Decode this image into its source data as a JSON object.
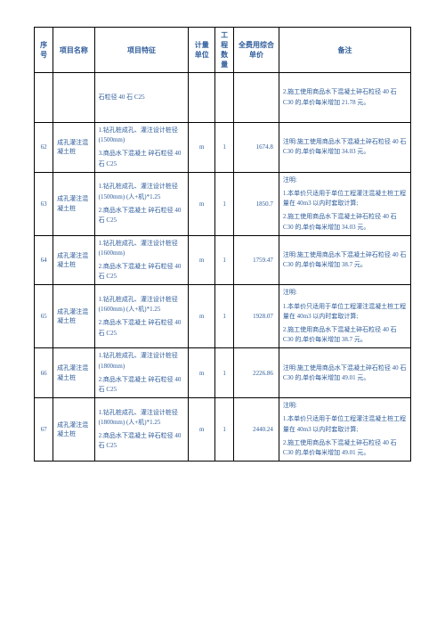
{
  "columns": [
    "序号",
    "项目名称",
    "项目特征",
    "计量单位",
    "工程数量",
    "全费用综合单价",
    "备注"
  ],
  "rows": [
    {
      "seq": "",
      "name": "",
      "features": [
        "石粒径 40 石 C25"
      ],
      "unit": "",
      "qty": "",
      "price": "",
      "remarks": [
        "2.施工使用商品水下混凝土碎石粒径 40 石 C30 的,单价每米增加 21.78 元。"
      ]
    },
    {
      "seq": "62",
      "name": "成孔灌注混凝土桩",
      "features": [
        "1.钻孔桩成孔、灌注设计桩径(1500mm)",
        "3.商品水下混凝土 碎石粒径 40 石 C25"
      ],
      "unit": "m",
      "qty": "1",
      "price": "1674.8",
      "remarks": [
        "注明:施工使用商品水下混凝土碎石粒径 40 石 C30 的,单价每米增加 34.03 元。"
      ]
    },
    {
      "seq": "63",
      "name": "成孔灌注混凝土桩",
      "features": [
        "1.钻孔桩成孔、灌注设计桩径(1500mm) (人+机)*1.25",
        "2.商品水下混凝土 碎石粒径 40 石 C25"
      ],
      "unit": "m",
      "qty": "1",
      "price": "1850.7",
      "remarks": [
        "注明:",
        "1.本单价只适用于单位工程灌注混凝土桩工程量在 40m3 以内时套取计算;",
        "2.施工使用商品水下混凝土碎石粒径 40 石 C30 的,单价每米增加 34.03 元。"
      ]
    },
    {
      "seq": "64",
      "name": "成孔灌注混凝土桩",
      "features": [
        "1.钻孔桩成孔、灌注设计桩径(1600mm)",
        "2.商品水下混凝土 碎石粒径 40 石 C25"
      ],
      "unit": "m",
      "qty": "1",
      "price": "1759.47",
      "remarks": [
        "注明:施工使用商品水下混凝土碎石粒径 40 石 C30 的,单价每米增加 38.7 元。"
      ]
    },
    {
      "seq": "65",
      "name": "成孔灌注混凝土桩",
      "features": [
        "1.钻孔桩成孔、灌注设计桩径(1600mm) (人+机)*1.25",
        "2.商品水下混凝土 碎石粒径 40 石 C25"
      ],
      "unit": "m",
      "qty": "1",
      "price": "1928.07",
      "remarks": [
        "注明:",
        "1.本单价只适用于单位工程灌注混凝土桩工程量在 40m3 以内时套取计算;",
        "2.施工使用商品水下混凝土碎石粒径 40 石 C30 的,单价每米增加 38.7 元。"
      ]
    },
    {
      "seq": "66",
      "name": "成孔灌注混凝土桩",
      "features": [
        "1.钻孔桩成孔、灌注设计桩径(1800mm)",
        "2.商品水下混凝土 碎石粒径 40 石 C25"
      ],
      "unit": "m",
      "qty": "1",
      "price": "2226.86",
      "remarks": [
        "注明:施工使用商品水下混凝土碎石粒径 40 石 C30 的,单价每米增加 49.01 元。"
      ]
    },
    {
      "seq": "67",
      "name": "成孔灌注混凝土桩",
      "features": [
        "1.钻孔桩成孔、灌注设计桩径(1800mm) (人+机)*1.25",
        "2.商品水下混凝土 碎石粒径 40 石 C25"
      ],
      "unit": "m",
      "qty": "1",
      "price": "2440.24",
      "remarks": [
        "注明:",
        "1.本单价只适用于单位工程灌注混凝土桩工程量在 40m3 以内时套取计算;",
        "2.施工使用商品水下混凝土碎石粒径 40 石 C30 的,单价每米增加 49.01 元。"
      ]
    }
  ]
}
